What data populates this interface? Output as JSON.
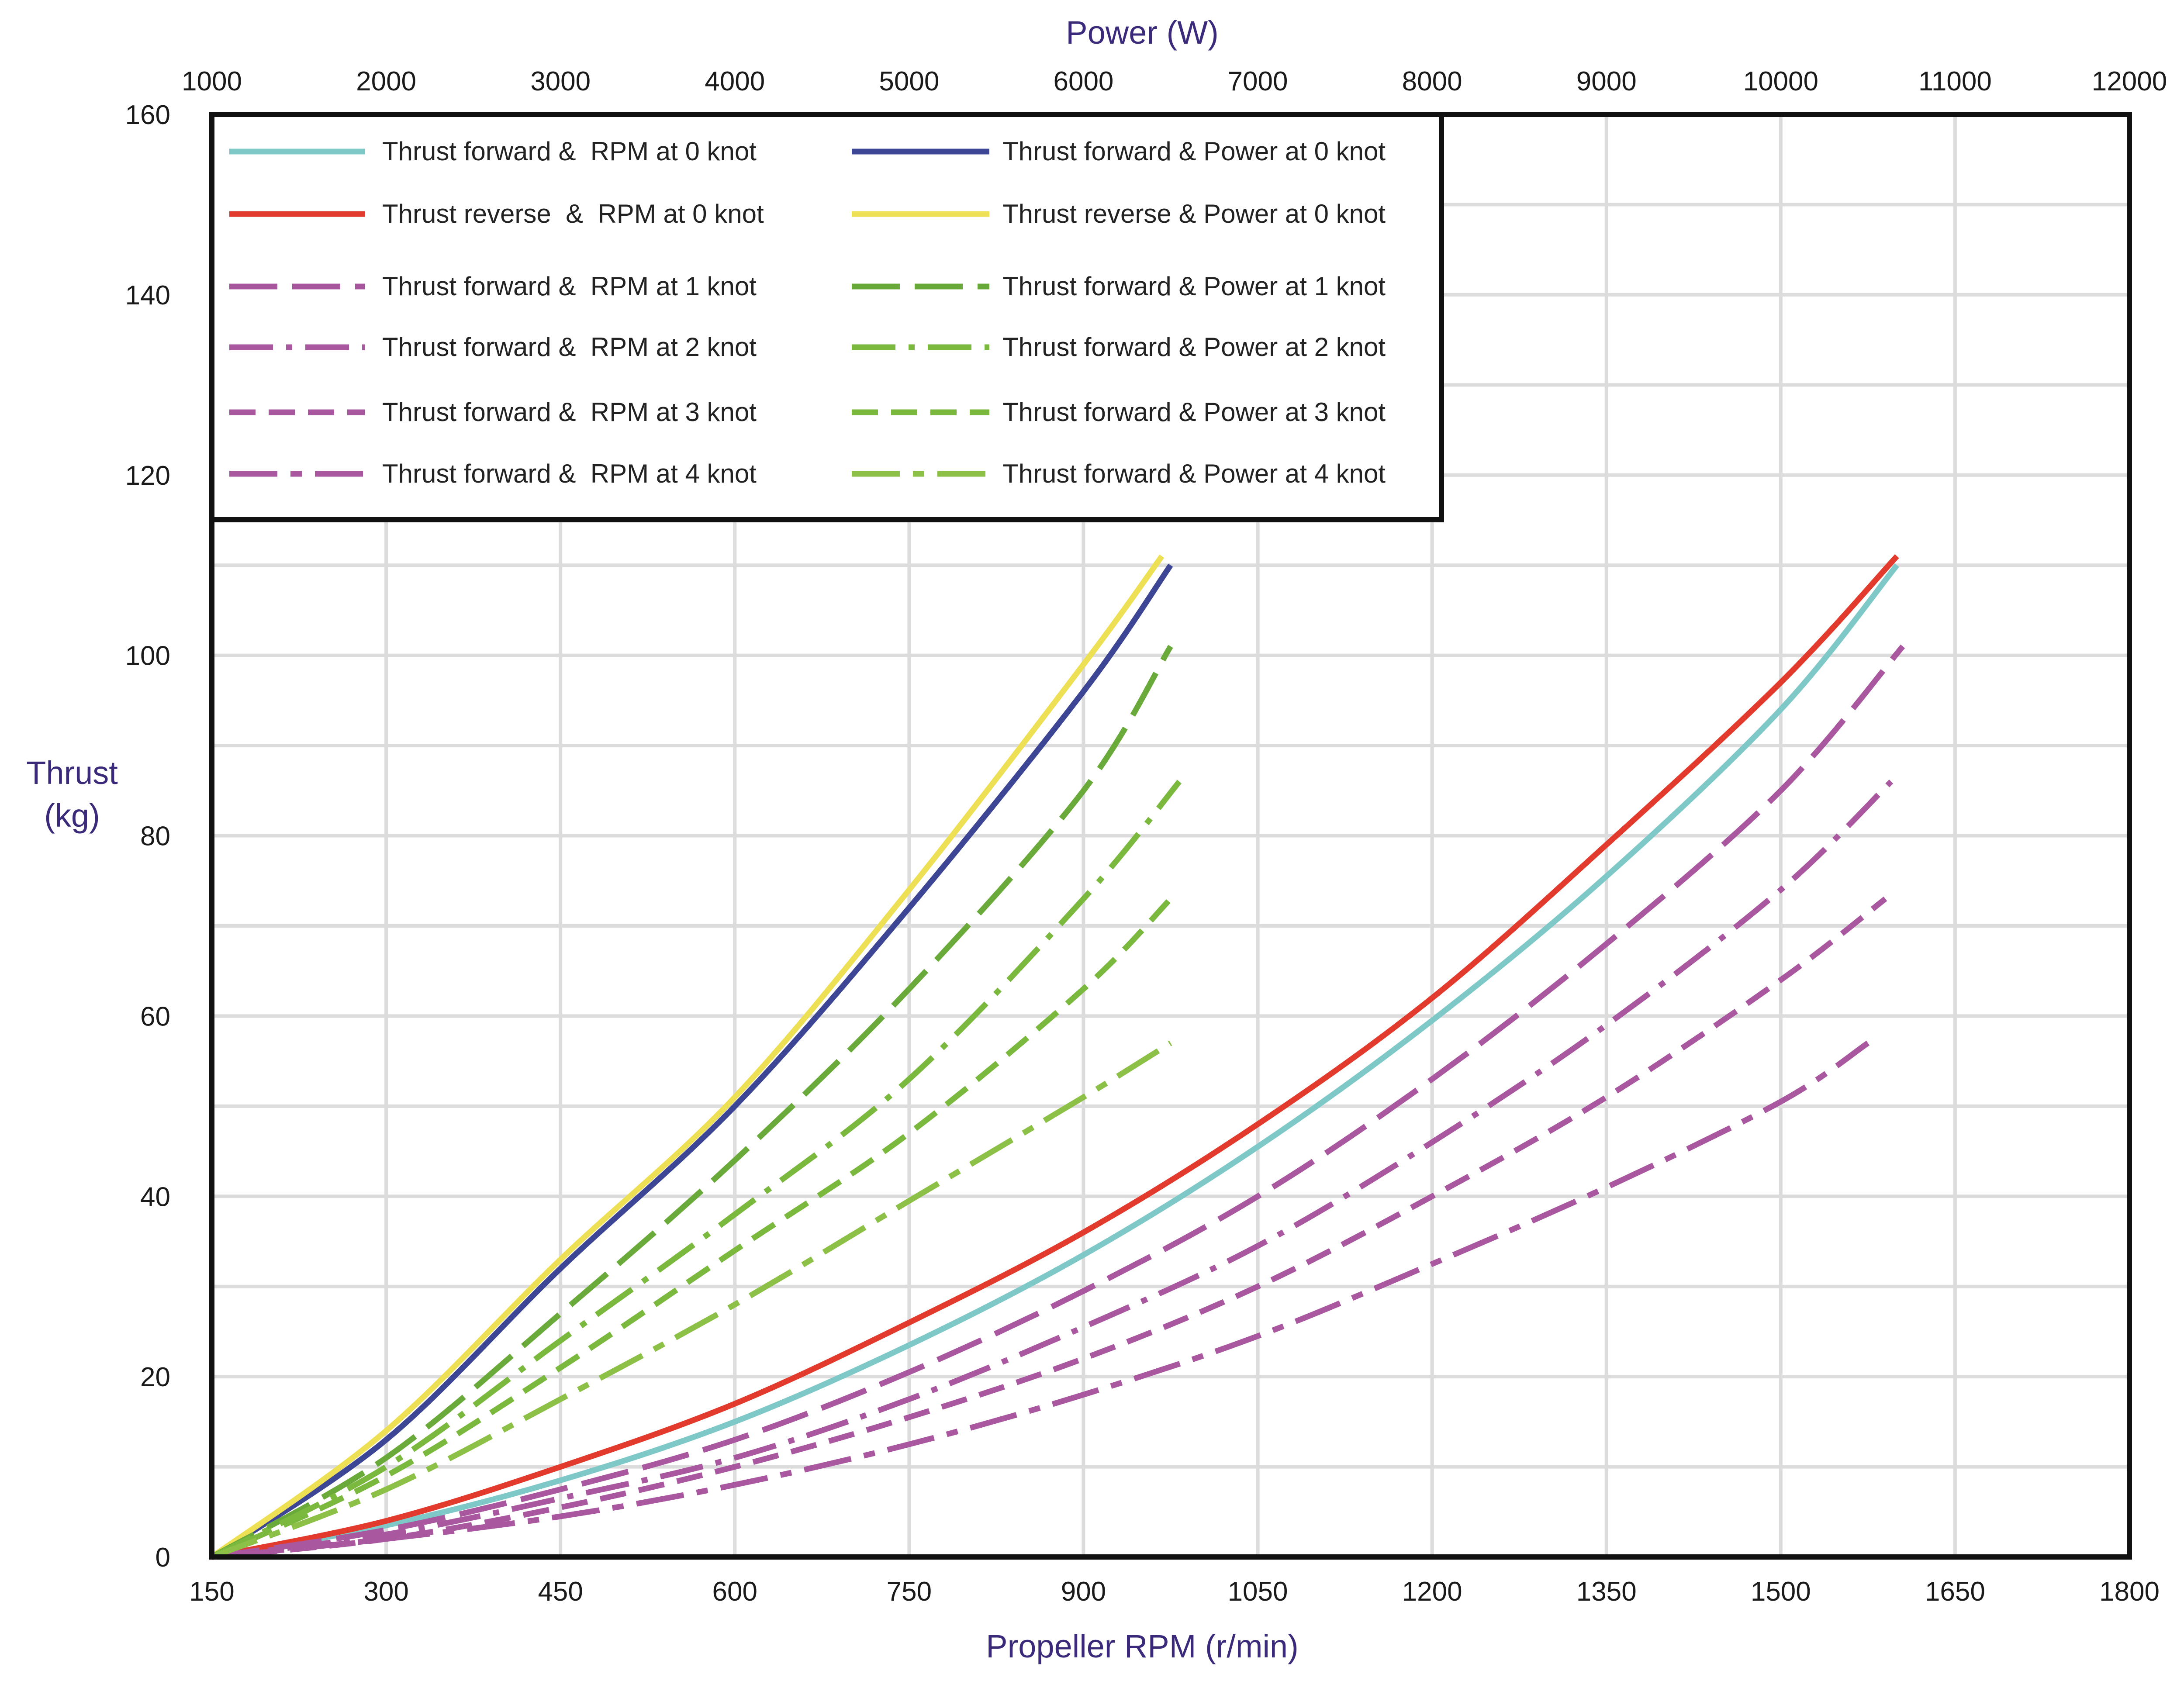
{
  "chart_data": {
    "type": "line",
    "title": "",
    "xlabel": "Propeller RPM (r/min)",
    "x2label": "Power (W)",
    "ylabel_line1": "Thrust",
    "ylabel_line2": "(kg)",
    "xlim": [
      150,
      1800
    ],
    "x2lim": [
      1000,
      12000
    ],
    "ylim": [
      0,
      160
    ],
    "x_ticks": [
      150,
      300,
      450,
      600,
      750,
      900,
      1050,
      1200,
      1350,
      1500,
      1650,
      1800
    ],
    "x2_ticks": [
      1000,
      2000,
      3000,
      4000,
      5000,
      6000,
      7000,
      8000,
      9000,
      10000,
      11000,
      12000
    ],
    "y_ticks": [
      0,
      20,
      40,
      60,
      80,
      100,
      120,
      140,
      160
    ],
    "grid": true,
    "legend_position": "top-left",
    "series": [
      {
        "name": "Thrust forward &  RPM at 0 knot",
        "axis": "rpm",
        "color": "#7ec8c8",
        "dash": "solid",
        "x": [
          150,
          300,
          450,
          600,
          750,
          900,
          1050,
          1200,
          1350,
          1500,
          1600
        ],
        "y": [
          0,
          3.5,
          8.5,
          15,
          23.5,
          33.5,
          45.5,
          59.5,
          75.5,
          94,
          110
        ]
      },
      {
        "name": "Thrust forward & Power at 0 knot",
        "axis": "power",
        "color": "#3d4595",
        "dash": "solid",
        "x": [
          1000,
          2000,
          3000,
          4000,
          5000,
          6000,
          6500
        ],
        "y": [
          0,
          13,
          32,
          50,
          72,
          96,
          110
        ]
      },
      {
        "name": "Thrust reverse  &  RPM at 0 knot",
        "axis": "rpm",
        "color": "#e23b2e",
        "dash": "solid",
        "x": [
          150,
          300,
          450,
          600,
          750,
          900,
          1050,
          1200,
          1350,
          1500,
          1600
        ],
        "y": [
          0,
          4,
          10,
          17,
          26,
          36,
          48,
          62,
          79,
          97,
          111
        ]
      },
      {
        "name": "Thrust reverse & Power at 0 knot",
        "axis": "power",
        "color": "#ede055",
        "dash": "solid",
        "x": [
          1000,
          2000,
          3000,
          4000,
          5000,
          6000,
          6450
        ],
        "y": [
          0,
          14,
          33,
          51,
          74,
          99,
          111
        ]
      },
      {
        "name": "Thrust forward &  RPM at 1 knot",
        "axis": "rpm",
        "color": "#a9589f",
        "dash": "longdash",
        "x": [
          150,
          300,
          450,
          600,
          750,
          900,
          1050,
          1200,
          1350,
          1500,
          1605
        ],
        "y": [
          0,
          3,
          7.5,
          13,
          20.5,
          29.5,
          40,
          53,
          68,
          85,
          101
        ]
      },
      {
        "name": "Thrust forward & Power at 1 knot",
        "axis": "power",
        "color": "#6aaa3a",
        "dash": "longdash",
        "x": [
          1000,
          2000,
          3000,
          4000,
          5000,
          6000,
          6500
        ],
        "y": [
          0,
          11,
          27,
          44,
          63,
          85,
          101
        ]
      },
      {
        "name": "Thrust forward &  RPM at 2 knot",
        "axis": "rpm",
        "color": "#a9589f",
        "dash": "dashdot",
        "x": [
          150,
          300,
          450,
          600,
          750,
          900,
          1050,
          1200,
          1350,
          1500,
          1595
        ],
        "y": [
          0,
          2.5,
          6.5,
          11,
          17.5,
          25.5,
          34.5,
          46,
          59,
          74,
          86
        ]
      },
      {
        "name": "Thrust forward & Power at 2 knot",
        "axis": "power",
        "color": "#7ab83e",
        "dash": "dashdot",
        "x": [
          1000,
          2000,
          3000,
          4000,
          5000,
          6000,
          6550
        ],
        "y": [
          0,
          10,
          24,
          38,
          53,
          73,
          86
        ]
      },
      {
        "name": "Thrust forward &  RPM at 3 knot",
        "axis": "rpm",
        "color": "#a9589f",
        "dash": "dashed",
        "x": [
          150,
          300,
          450,
          600,
          750,
          900,
          1050,
          1200,
          1350,
          1500,
          1590
        ],
        "y": [
          0,
          2,
          5.5,
          10,
          15.5,
          22,
          30,
          40,
          51,
          64,
          73
        ]
      },
      {
        "name": "Thrust forward & Power at 3 knot",
        "axis": "power",
        "color": "#7ab83e",
        "dash": "dashed",
        "x": [
          1000,
          2000,
          3000,
          4000,
          5000,
          6000,
          6500
        ],
        "y": [
          0,
          9,
          21,
          34,
          47,
          63,
          73
        ]
      },
      {
        "name": "Thrust forward &  RPM at 4 knot",
        "axis": "rpm",
        "color": "#a9589f",
        "dash": "longdashdot",
        "x": [
          150,
          300,
          450,
          600,
          750,
          900,
          1050,
          1200,
          1350,
          1500,
          1575
        ],
        "y": [
          0,
          2,
          4.5,
          8,
          12.5,
          18,
          24.5,
          32.5,
          41,
          50.5,
          57
        ]
      },
      {
        "name": "Thrust forward & Power at 4 knot",
        "axis": "power",
        "color": "#8cc046",
        "dash": "longdashdot",
        "x": [
          1000,
          2000,
          3000,
          4000,
          5000,
          6000,
          6500
        ],
        "y": [
          0,
          7.5,
          17.5,
          28,
          39.5,
          51,
          57
        ]
      }
    ]
  }
}
